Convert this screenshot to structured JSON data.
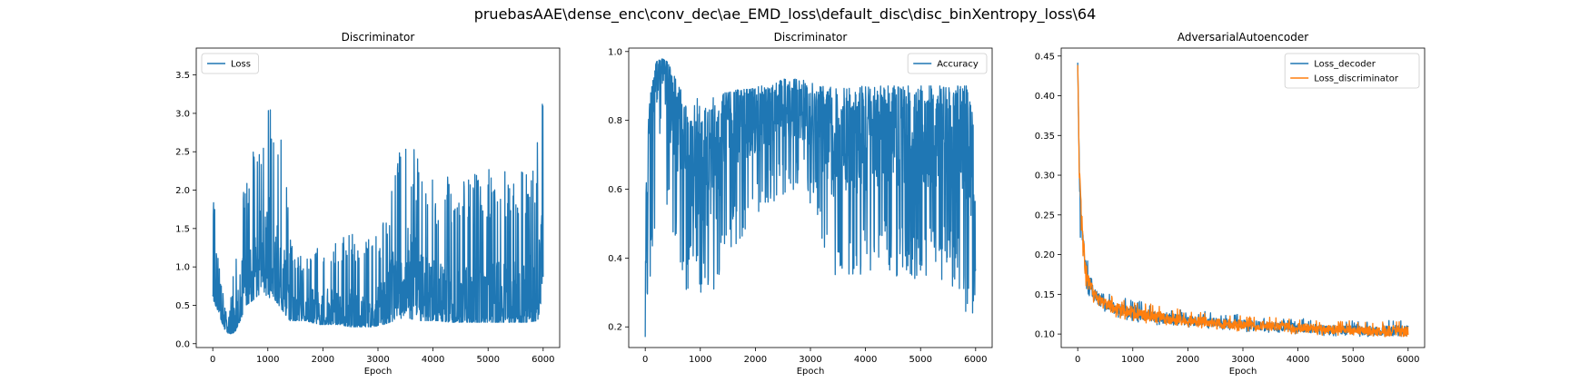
{
  "suptitle": "pruebasAAE\\dense_enc\\conv_dec\\ae_EMD_loss\\default_disc\\disc_binXentropy_loss\\64",
  "colors": {
    "blue": "#1f77b4",
    "orange": "#ff7f0e"
  },
  "chart_data": [
    {
      "type": "line",
      "title": "Discriminator",
      "xlabel": "Epoch",
      "ylabel": "",
      "xlim": [
        -300,
        6300
      ],
      "ylim": [
        -0.05,
        3.85
      ],
      "xticks": [
        0,
        1000,
        2000,
        3000,
        4000,
        5000,
        6000
      ],
      "yticks": [
        0.0,
        0.5,
        1.0,
        1.5,
        2.0,
        2.5,
        3.0,
        3.5
      ],
      "ytick_labels": [
        "0.0",
        "0.5",
        "1.0",
        "1.5",
        "2.0",
        "2.5",
        "3.0",
        "3.5"
      ],
      "legend_position": "upper left",
      "grid": false,
      "series": [
        {
          "name": "Loss",
          "color": "#1f77b4",
          "x": [
            0,
            100,
            200,
            300,
            400,
            500,
            600,
            700,
            800,
            900,
            1000,
            1100,
            1200,
            1300,
            1400,
            1500,
            1700,
            1900,
            2100,
            2300,
            2500,
            2700,
            2900,
            3100,
            3300,
            3500,
            3700,
            3900,
            4100,
            4300,
            4500,
            4700,
            4900,
            5100,
            5300,
            5500,
            5700,
            5900,
            6000
          ],
          "y": [
            0.7,
            0.6,
            0.3,
            0.15,
            0.25,
            0.6,
            0.8,
            0.9,
            1.1,
            1.2,
            1.2,
            1.1,
            0.9,
            0.7,
            0.55,
            0.45,
            0.45,
            0.4,
            0.4,
            0.35,
            0.35,
            0.35,
            0.35,
            0.45,
            0.7,
            0.9,
            0.8,
            0.6,
            0.55,
            0.5,
            0.5,
            0.5,
            0.5,
            0.5,
            0.5,
            0.5,
            0.5,
            0.7,
            1.6
          ],
          "upper": [
            2.3,
            1.1,
            0.6,
            0.4,
            1.2,
            1.8,
            2.1,
            2.4,
            2.7,
            2.9,
            3.4,
            2.8,
            2.8,
            2.5,
            1.4,
            1.1,
            1.3,
            1.3,
            1.5,
            1.3,
            1.6,
            1.3,
            1.4,
            1.6,
            2.4,
            2.9,
            2.5,
            2.1,
            2.2,
            2.2,
            2.4,
            2.3,
            2.2,
            2.4,
            2.3,
            2.4,
            2.3,
            2.7,
            3.6
          ],
          "lower": [
            0.6,
            0.4,
            0.2,
            0.12,
            0.15,
            0.3,
            0.5,
            0.55,
            0.6,
            0.7,
            0.6,
            0.6,
            0.5,
            0.4,
            0.3,
            0.3,
            0.3,
            0.25,
            0.25,
            0.25,
            0.22,
            0.22,
            0.22,
            0.25,
            0.3,
            0.35,
            0.3,
            0.3,
            0.3,
            0.28,
            0.28,
            0.28,
            0.28,
            0.28,
            0.28,
            0.28,
            0.28,
            0.3,
            0.7
          ]
        }
      ]
    },
    {
      "type": "line",
      "title": "Discriminator",
      "xlabel": "Epoch",
      "ylabel": "",
      "xlim": [
        -300,
        6300
      ],
      "ylim": [
        0.14,
        1.01
      ],
      "xticks": [
        0,
        1000,
        2000,
        3000,
        4000,
        5000,
        6000
      ],
      "yticks": [
        0.2,
        0.4,
        0.6,
        0.8,
        1.0
      ],
      "ytick_labels": [
        "0.2",
        "0.4",
        "0.6",
        "0.8",
        "1.0"
      ],
      "legend_position": "upper right",
      "grid": false,
      "series": [
        {
          "name": "Accuracy",
          "color": "#1f77b4",
          "x": [
            0,
            100,
            200,
            300,
            400,
            500,
            600,
            700,
            800,
            900,
            1000,
            1100,
            1200,
            1300,
            1400,
            1500,
            1700,
            1900,
            2100,
            2300,
            2500,
            2700,
            2900,
            3100,
            3300,
            3500,
            3700,
            3900,
            4100,
            4300,
            4500,
            4700,
            4900,
            5100,
            5300,
            5500,
            5700,
            5900,
            6000
          ],
          "y": [
            0.4,
            0.8,
            0.93,
            0.95,
            0.92,
            0.85,
            0.78,
            0.72,
            0.66,
            0.62,
            0.6,
            0.62,
            0.64,
            0.68,
            0.74,
            0.78,
            0.8,
            0.81,
            0.82,
            0.83,
            0.84,
            0.83,
            0.83,
            0.8,
            0.75,
            0.7,
            0.72,
            0.74,
            0.75,
            0.76,
            0.76,
            0.76,
            0.76,
            0.76,
            0.76,
            0.76,
            0.76,
            0.72,
            0.5
          ],
          "upper": [
            0.72,
            0.88,
            0.97,
            0.98,
            0.97,
            0.94,
            0.9,
            0.88,
            0.86,
            0.86,
            0.87,
            0.87,
            0.87,
            0.87,
            0.88,
            0.88,
            0.89,
            0.89,
            0.9,
            0.9,
            0.92,
            0.92,
            0.92,
            0.91,
            0.9,
            0.89,
            0.9,
            0.9,
            0.9,
            0.9,
            0.9,
            0.9,
            0.9,
            0.9,
            0.9,
            0.9,
            0.9,
            0.9,
            0.84
          ],
          "lower": [
            0.16,
            0.22,
            0.6,
            0.75,
            0.5,
            0.38,
            0.32,
            0.3,
            0.3,
            0.3,
            0.28,
            0.28,
            0.27,
            0.27,
            0.3,
            0.38,
            0.45,
            0.48,
            0.5,
            0.55,
            0.58,
            0.58,
            0.6,
            0.5,
            0.4,
            0.33,
            0.35,
            0.35,
            0.35,
            0.35,
            0.34,
            0.33,
            0.33,
            0.33,
            0.33,
            0.33,
            0.3,
            0.2,
            0.28
          ]
        }
      ]
    },
    {
      "type": "line",
      "title": "AdversarialAutoencoder",
      "xlabel": "Epoch",
      "ylabel": "",
      "xlim": [
        -300,
        6300
      ],
      "ylim": [
        0.083,
        0.46
      ],
      "xticks": [
        0,
        1000,
        2000,
        3000,
        4000,
        5000,
        6000
      ],
      "yticks": [
        0.1,
        0.15,
        0.2,
        0.25,
        0.3,
        0.35,
        0.4,
        0.45
      ],
      "ytick_labels": [
        "0.10",
        "0.15",
        "0.20",
        "0.25",
        "0.30",
        "0.35",
        "0.40",
        "0.45"
      ],
      "legend_position": "upper right",
      "grid": false,
      "series": [
        {
          "name": "Loss_decoder",
          "color": "#1f77b4",
          "x": [
            0,
            30,
            60,
            100,
            150,
            200,
            300,
            400,
            500,
            700,
            1000,
            1500,
            2000,
            2500,
            3000,
            3500,
            4000,
            4500,
            5000,
            5500,
            6000
          ],
          "y": [
            0.44,
            0.3,
            0.25,
            0.21,
            0.18,
            0.165,
            0.15,
            0.142,
            0.138,
            0.132,
            0.127,
            0.121,
            0.117,
            0.114,
            0.112,
            0.11,
            0.108,
            0.106,
            0.105,
            0.104,
            0.104
          ],
          "upper": [
            0.445,
            0.31,
            0.27,
            0.24,
            0.21,
            0.185,
            0.165,
            0.158,
            0.152,
            0.148,
            0.143,
            0.137,
            0.13,
            0.128,
            0.124,
            0.122,
            0.12,
            0.118,
            0.117,
            0.118,
            0.125
          ],
          "lower": [
            0.43,
            0.24,
            0.2,
            0.18,
            0.16,
            0.148,
            0.136,
            0.13,
            0.126,
            0.121,
            0.116,
            0.111,
            0.108,
            0.106,
            0.103,
            0.101,
            0.1,
            0.098,
            0.097,
            0.096,
            0.097
          ]
        },
        {
          "name": "Loss_discriminator",
          "color": "#ff7f0e",
          "x": [
            0,
            30,
            60,
            100,
            150,
            200,
            300,
            400,
            500,
            700,
            1000,
            1500,
            2000,
            2500,
            3000,
            3500,
            4000,
            4500,
            5000,
            5500,
            6000
          ],
          "y": [
            0.44,
            0.3,
            0.25,
            0.21,
            0.18,
            0.165,
            0.15,
            0.142,
            0.138,
            0.132,
            0.127,
            0.121,
            0.117,
            0.114,
            0.112,
            0.11,
            0.108,
            0.106,
            0.105,
            0.104,
            0.104
          ],
          "upper": [
            0.445,
            0.31,
            0.27,
            0.24,
            0.21,
            0.185,
            0.165,
            0.158,
            0.152,
            0.148,
            0.143,
            0.137,
            0.13,
            0.128,
            0.124,
            0.122,
            0.12,
            0.118,
            0.117,
            0.118,
            0.125
          ],
          "lower": [
            0.43,
            0.24,
            0.2,
            0.18,
            0.16,
            0.148,
            0.136,
            0.13,
            0.126,
            0.121,
            0.116,
            0.111,
            0.108,
            0.106,
            0.103,
            0.101,
            0.1,
            0.098,
            0.097,
            0.096,
            0.097
          ]
        }
      ]
    }
  ]
}
